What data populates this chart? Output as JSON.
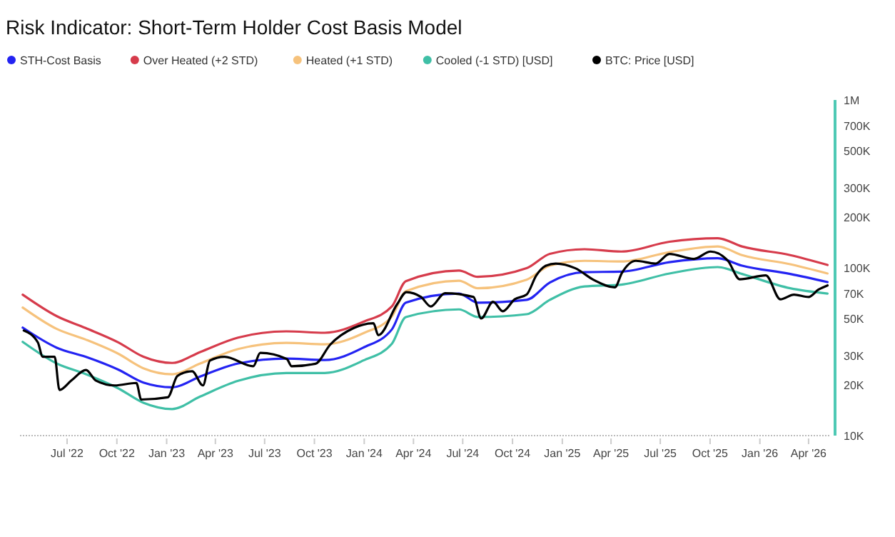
{
  "chart_data": {
    "type": "line",
    "title": "Risk Indicator: Short-Term Holder Cost Basis Model",
    "log": "y",
    "legend": "top",
    "grid": false,
    "marker": "none",
    "line_style": "solid",
    "xlim": [
      "2022-04-05",
      "2026-05-12"
    ],
    "xticks": [
      {
        "value": "2022-07-01",
        "label": "Jul '22"
      },
      {
        "value": "2022-10-01",
        "label": "Oct '22"
      },
      {
        "value": "2023-01-01",
        "label": "Jan '23"
      },
      {
        "value": "2023-04-01",
        "label": "Apr '23"
      },
      {
        "value": "2023-07-01",
        "label": "Jul '23"
      },
      {
        "value": "2023-10-01",
        "label": "Oct '23"
      },
      {
        "value": "2024-01-01",
        "label": "Jan '24"
      },
      {
        "value": "2024-04-01",
        "label": "Apr '24"
      },
      {
        "value": "2024-07-01",
        "label": "Jul '24"
      },
      {
        "value": "2024-10-01",
        "label": "Oct '24"
      },
      {
        "value": "2025-01-01",
        "label": "Jan '25"
      },
      {
        "value": "2025-04-01",
        "label": "Apr '25"
      },
      {
        "value": "2025-07-01",
        "label": "Jul '25"
      },
      {
        "value": "2025-10-01",
        "label": "Oct '25"
      },
      {
        "value": "2026-01-01",
        "label": "Jan '26"
      },
      {
        "value": "2026-04-01",
        "label": "Apr '26"
      }
    ],
    "ylim": [
      10000,
      1000000
    ],
    "yticks": [
      {
        "value": 10000,
        "label": "10K"
      },
      {
        "value": 20000,
        "label": "20K"
      },
      {
        "value": 30000,
        "label": "30K"
      },
      {
        "value": 50000,
        "label": "50K"
      },
      {
        "value": 70000,
        "label": "70K"
      },
      {
        "value": 100000,
        "label": "100K"
      },
      {
        "value": 200000,
        "label": "200K"
      },
      {
        "value": 300000,
        "label": "300K"
      },
      {
        "value": 500000,
        "label": "500K"
      },
      {
        "value": 700000,
        "label": "700K"
      },
      {
        "value": 1000000,
        "label": "1M"
      }
    ],
    "x": [
      "2022-04-10",
      "2022-06-12",
      "2022-08-04",
      "2022-10-04",
      "2022-11-19",
      "2023-01-11",
      "2023-03-04",
      "2023-05-13",
      "2023-08-10",
      "2023-10-20",
      "2023-12-30",
      "2024-02-21",
      "2024-03-18",
      "2024-06-24",
      "2024-07-29",
      "2024-10-27",
      "2024-12-09",
      "2025-02-11",
      "2025-04-20",
      "2025-07-18",
      "2025-10-15",
      "2025-11-29",
      "2026-02-26",
      "2026-05-06"
    ],
    "series": [
      {
        "name": "STH-Cost Basis",
        "color": "#2323f2",
        "values": [
          44000,
          33400,
          29500,
          24700,
          20700,
          19400,
          22500,
          26900,
          28800,
          28200,
          33400,
          42900,
          62000,
          70200,
          62000,
          64400,
          81700,
          94200,
          94800,
          108000,
          114000,
          103000,
          91900,
          82200
        ]
      },
      {
        "name": "Over Heated (+2 STD)",
        "color": "#d63b4b",
        "values": [
          69200,
          51500,
          43800,
          35900,
          29500,
          27100,
          31500,
          38400,
          41800,
          41000,
          47600,
          58800,
          83200,
          96200,
          88300,
          99400,
          121000,
          129000,
          125000,
          143000,
          150000,
          134000,
          119000,
          104000
        ]
      },
      {
        "name": "Heated (+1 STD)",
        "color": "#f6c27c",
        "values": [
          58000,
          43200,
          37400,
          30700,
          25200,
          23200,
          26900,
          32800,
          35700,
          35000,
          40700,
          51200,
          72600,
          83800,
          75500,
          84900,
          103000,
          110000,
          109000,
          124000,
          134000,
          119000,
          105000,
          92500
        ]
      },
      {
        "name": "Cooled (-1 STD) [USD]",
        "color": "#3fbfa6",
        "values": [
          36200,
          26900,
          23300,
          19100,
          15700,
          14400,
          17100,
          21200,
          23600,
          23600,
          28000,
          35200,
          50900,
          56500,
          50900,
          52900,
          64400,
          77400,
          79400,
          92500,
          101000,
          91900,
          75500,
          70200
        ]
      },
      {
        "name": "BTC: Price [USD]",
        "color": "#000000",
        "x": [
          "2022-04-12",
          "2022-05-08",
          "2022-05-17",
          "2022-06-08",
          "2022-06-17",
          "2022-07-09",
          "2022-08-05",
          "2022-08-23",
          "2022-09-27",
          "2022-11-06",
          "2022-11-15",
          "2023-01-03",
          "2023-01-21",
          "2023-02-17",
          "2023-03-09",
          "2023-03-22",
          "2023-04-18",
          "2023-06-10",
          "2023-06-23",
          "2023-08-11",
          "2023-08-20",
          "2023-10-03",
          "2023-10-30",
          "2023-12-13",
          "2024-01-18",
          "2024-01-27",
          "2024-03-02",
          "2024-03-19",
          "2024-04-15",
          "2024-05-03",
          "2024-05-29",
          "2024-07-21",
          "2024-08-04",
          "2024-08-26",
          "2024-09-13",
          "2024-10-05",
          "2024-10-27",
          "2024-11-14",
          "2024-12-02",
          "2024-12-20",
          "2025-01-25",
          "2025-03-01",
          "2025-04-08",
          "2025-04-21",
          "2025-05-17",
          "2025-06-22",
          "2025-07-18",
          "2025-09-01",
          "2025-10-02",
          "2025-11-03",
          "2025-11-25",
          "2026-01-12",
          "2026-02-08",
          "2026-03-05",
          "2026-04-01",
          "2026-04-19",
          "2026-05-06"
        ],
        "values": [
          42300,
          35900,
          29500,
          29500,
          18700,
          21300,
          24600,
          21300,
          19900,
          20600,
          16400,
          16900,
          22700,
          24200,
          19900,
          28000,
          29500,
          25900,
          31100,
          28600,
          25900,
          26800,
          34800,
          43800,
          46700,
          39700,
          60800,
          71600,
          67000,
          58800,
          70600,
          67000,
          49900,
          62700,
          55100,
          64900,
          69200,
          90100,
          103000,
          106000,
          99400,
          84300,
          76400,
          93000,
          110000,
          106000,
          121000,
          113000,
          125000,
          110000,
          85400,
          90100,
          64900,
          69200,
          67000,
          74000,
          78500
        ]
      }
    ]
  }
}
